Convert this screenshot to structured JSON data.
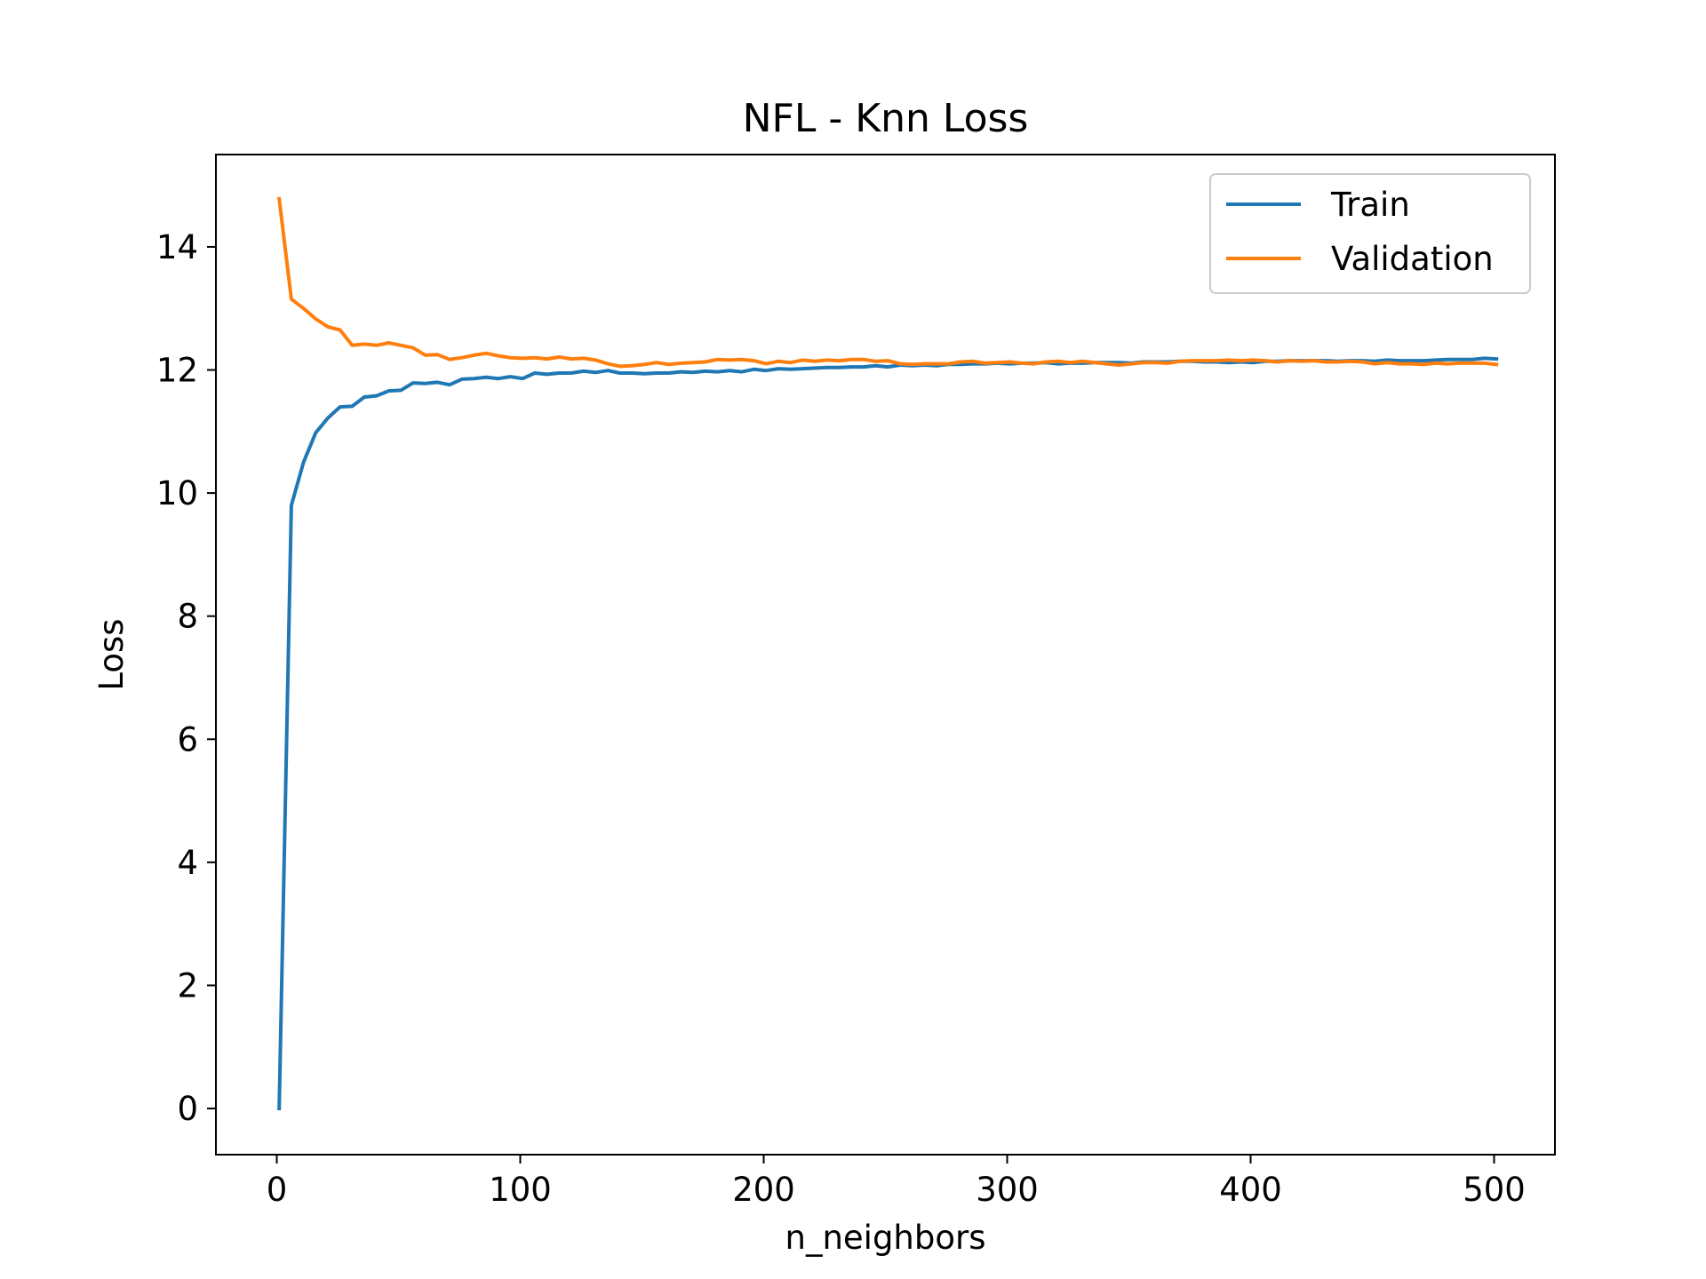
{
  "chart_data": {
    "type": "line",
    "title": "NFL - Knn Loss",
    "xlabel": "n_neighbors",
    "ylabel": "Loss",
    "xlim": [
      -25,
      525
    ],
    "ylim": [
      -0.75,
      15.5
    ],
    "xticks": [
      0,
      100,
      200,
      300,
      400,
      500
    ],
    "yticks": [
      0,
      2,
      4,
      6,
      8,
      10,
      12,
      14
    ],
    "grid": false,
    "legend_position": "top-right",
    "series": [
      {
        "name": "Train",
        "color": "#1f77b4",
        "x": [
          1,
          6,
          11,
          16,
          21,
          26,
          31,
          36,
          41,
          46,
          51,
          56,
          61,
          66,
          71,
          76,
          81,
          86,
          91,
          96,
          101,
          106,
          111,
          116,
          121,
          126,
          131,
          136,
          141,
          146,
          151,
          156,
          161,
          166,
          171,
          176,
          181,
          186,
          191,
          196,
          201,
          206,
          211,
          216,
          221,
          226,
          231,
          236,
          241,
          246,
          251,
          256,
          261,
          266,
          271,
          276,
          281,
          286,
          291,
          296,
          301,
          306,
          311,
          316,
          321,
          326,
          331,
          336,
          341,
          346,
          351,
          356,
          361,
          366,
          371,
          376,
          381,
          386,
          391,
          396,
          401,
          406,
          411,
          416,
          421,
          426,
          431,
          436,
          441,
          446,
          451,
          456,
          461,
          466,
          471,
          476,
          481,
          486,
          491,
          496,
          501
        ],
        "y": [
          0.0,
          9.8,
          10.5,
          10.98,
          11.22,
          11.4,
          11.41,
          11.56,
          11.58,
          11.66,
          11.67,
          11.79,
          11.78,
          11.8,
          11.76,
          11.85,
          11.86,
          11.88,
          11.86,
          11.89,
          11.86,
          11.95,
          11.93,
          11.95,
          11.95,
          11.98,
          11.96,
          11.99,
          11.95,
          11.95,
          11.94,
          11.95,
          11.95,
          11.97,
          11.96,
          11.98,
          11.97,
          11.99,
          11.97,
          12.01,
          11.99,
          12.02,
          12.01,
          12.02,
          12.03,
          12.04,
          12.04,
          12.05,
          12.05,
          12.07,
          12.05,
          12.08,
          12.07,
          12.08,
          12.07,
          12.09,
          12.09,
          12.1,
          12.1,
          12.11,
          12.1,
          12.11,
          12.11,
          12.12,
          12.1,
          12.11,
          12.11,
          12.12,
          12.12,
          12.12,
          12.11,
          12.13,
          12.13,
          12.13,
          12.14,
          12.14,
          12.13,
          12.13,
          12.12,
          12.13,
          12.12,
          12.14,
          12.14,
          12.15,
          12.15,
          12.15,
          12.15,
          12.14,
          12.15,
          12.15,
          12.14,
          12.16,
          12.15,
          12.15,
          12.15,
          12.16,
          12.17,
          12.17,
          12.17,
          12.19,
          12.18
        ]
      },
      {
        "name": "Validation",
        "color": "#ff7f0e",
        "x": [
          1,
          6,
          11,
          16,
          21,
          26,
          31,
          36,
          41,
          46,
          51,
          56,
          61,
          66,
          71,
          76,
          81,
          86,
          91,
          96,
          101,
          106,
          111,
          116,
          121,
          126,
          131,
          136,
          141,
          146,
          151,
          156,
          161,
          166,
          171,
          176,
          181,
          186,
          191,
          196,
          201,
          206,
          211,
          216,
          221,
          226,
          231,
          236,
          241,
          246,
          251,
          256,
          261,
          266,
          271,
          276,
          281,
          286,
          291,
          296,
          301,
          306,
          311,
          316,
          321,
          326,
          331,
          336,
          341,
          346,
          351,
          356,
          361,
          366,
          371,
          376,
          381,
          386,
          391,
          396,
          401,
          406,
          411,
          416,
          421,
          426,
          431,
          436,
          441,
          446,
          451,
          456,
          461,
          466,
          471,
          476,
          481,
          486,
          491,
          496,
          501
        ],
        "y": [
          14.78,
          13.15,
          13.0,
          12.83,
          12.7,
          12.65,
          12.4,
          12.42,
          12.4,
          12.44,
          12.4,
          12.36,
          12.24,
          12.25,
          12.17,
          12.2,
          12.24,
          12.27,
          12.23,
          12.2,
          12.19,
          12.2,
          12.18,
          12.21,
          12.18,
          12.19,
          12.16,
          12.1,
          12.06,
          12.07,
          12.09,
          12.12,
          12.09,
          12.11,
          12.12,
          12.13,
          12.17,
          12.16,
          12.17,
          12.15,
          12.1,
          12.14,
          12.12,
          12.16,
          12.14,
          12.16,
          12.15,
          12.17,
          12.17,
          12.14,
          12.15,
          12.1,
          12.09,
          12.1,
          12.1,
          12.1,
          12.13,
          12.14,
          12.11,
          12.12,
          12.13,
          12.11,
          12.1,
          12.13,
          12.14,
          12.12,
          12.14,
          12.12,
          12.1,
          12.08,
          12.1,
          12.12,
          12.12,
          12.11,
          12.14,
          12.15,
          12.15,
          12.15,
          12.16,
          12.15,
          12.16,
          12.15,
          12.13,
          12.15,
          12.14,
          12.15,
          12.13,
          12.13,
          12.14,
          12.13,
          12.1,
          12.12,
          12.1,
          12.1,
          12.09,
          12.11,
          12.1,
          12.11,
          12.11,
          12.11,
          12.09
        ]
      }
    ]
  }
}
